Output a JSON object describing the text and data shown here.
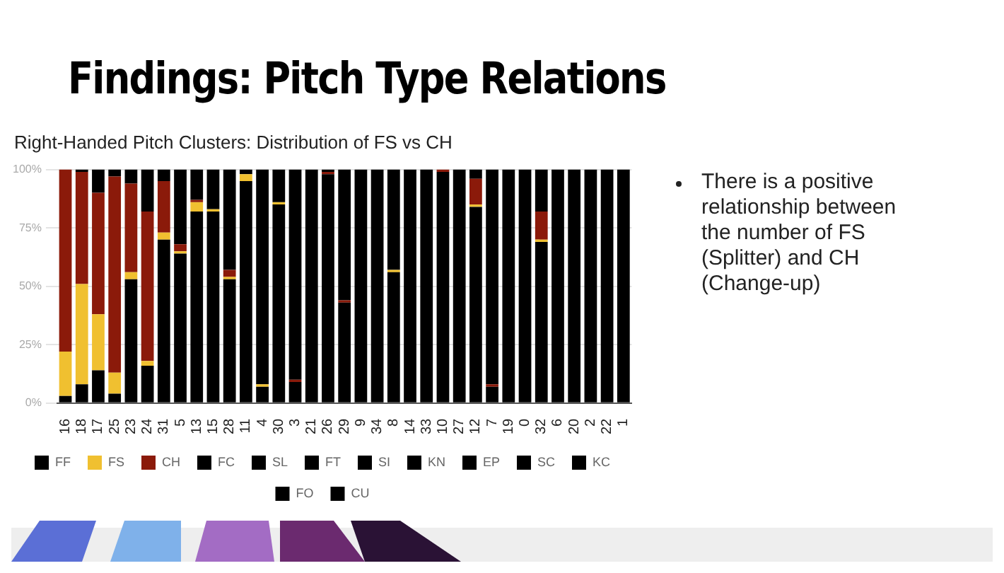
{
  "chart_data": {
    "type": "bar",
    "title": "Findings: Pitch Type Relations",
    "subtitle": "Right-Handed Pitch Clusters: Distribution of FS vs CH",
    "annotations": [
      "There is a positive relationship between the number of FS (Splitter) and CH (Change-up)"
    ],
    "categories": [
      "16",
      "18",
      "17",
      "25",
      "23",
      "24",
      "31",
      "5",
      "13",
      "15",
      "28",
      "11",
      "4",
      "30",
      "3",
      "21",
      "26",
      "29",
      "9",
      "34",
      "8",
      "14",
      "33",
      "10",
      "27",
      "12",
      "7",
      "19",
      "0",
      "32",
      "6",
      "20",
      "2",
      "22",
      "1"
    ],
    "stacked": true,
    "series": [
      {
        "name": "FF",
        "color": "#000000",
        "values": [
          3,
          8,
          14,
          4,
          53,
          16,
          70,
          64,
          82,
          82,
          53,
          95,
          7,
          85,
          9,
          100,
          98,
          43,
          100,
          100,
          56,
          100,
          100,
          99,
          100,
          84,
          7,
          100,
          100,
          69,
          100,
          100,
          100,
          100,
          100
        ]
      },
      {
        "name": "FS",
        "color": "#f0c030",
        "values": [
          19,
          43,
          24,
          9,
          3,
          2,
          3,
          1,
          4,
          1,
          1,
          3,
          1,
          1,
          0,
          0,
          0,
          0,
          0,
          0,
          1,
          0,
          0,
          0,
          0,
          1,
          0,
          0,
          0,
          1,
          0,
          0,
          0,
          0,
          0
        ]
      },
      {
        "name": "CH",
        "color": "#8b1a0a",
        "values": [
          78,
          48,
          52,
          84,
          38,
          64,
          22,
          3,
          1,
          0,
          3,
          0,
          0,
          0,
          1,
          0,
          1,
          1,
          0,
          0,
          0,
          0,
          0,
          1,
          0,
          11,
          1,
          0,
          0,
          12,
          0,
          0,
          0,
          0,
          0
        ]
      },
      {
        "name": "FC",
        "color": "#000000",
        "values": [
          0,
          1,
          10,
          3,
          6,
          18,
          5,
          32,
          13,
          17,
          43,
          2,
          92,
          14,
          90,
          0,
          1,
          56,
          0,
          0,
          43,
          0,
          0,
          0,
          0,
          4,
          92,
          0,
          0,
          18,
          0,
          0,
          0,
          0,
          0
        ]
      },
      {
        "name": "SL",
        "color": "#000000",
        "values": [
          0,
          0,
          0,
          0,
          0,
          0,
          0,
          0,
          0,
          0,
          0,
          0,
          0,
          0,
          0,
          0,
          0,
          0,
          0,
          0,
          0,
          0,
          0,
          0,
          0,
          0,
          0,
          0,
          0,
          0,
          0,
          0,
          0,
          0,
          0
        ]
      },
      {
        "name": "FT",
        "color": "#000000",
        "values": [
          0,
          0,
          0,
          0,
          0,
          0,
          0,
          0,
          0,
          0,
          0,
          0,
          0,
          0,
          0,
          0,
          0,
          0,
          0,
          0,
          0,
          0,
          0,
          0,
          0,
          0,
          0,
          0,
          0,
          0,
          0,
          0,
          0,
          0,
          0
        ]
      },
      {
        "name": "SI",
        "color": "#000000",
        "values": [
          0,
          0,
          0,
          0,
          0,
          0,
          0,
          0,
          0,
          0,
          0,
          0,
          0,
          0,
          0,
          0,
          0,
          0,
          0,
          0,
          0,
          0,
          0,
          0,
          0,
          0,
          0,
          0,
          0,
          0,
          0,
          0,
          0,
          0,
          0
        ]
      },
      {
        "name": "KN",
        "color": "#000000",
        "values": [
          0,
          0,
          0,
          0,
          0,
          0,
          0,
          0,
          0,
          0,
          0,
          0,
          0,
          0,
          0,
          0,
          0,
          0,
          0,
          0,
          0,
          0,
          0,
          0,
          0,
          0,
          0,
          0,
          0,
          0,
          0,
          0,
          0,
          0,
          0
        ]
      },
      {
        "name": "EP",
        "color": "#000000",
        "values": [
          0,
          0,
          0,
          0,
          0,
          0,
          0,
          0,
          0,
          0,
          0,
          0,
          0,
          0,
          0,
          0,
          0,
          0,
          0,
          0,
          0,
          0,
          0,
          0,
          0,
          0,
          0,
          0,
          0,
          0,
          0,
          0,
          0,
          0,
          0
        ]
      },
      {
        "name": "SC",
        "color": "#000000",
        "values": [
          0,
          0,
          0,
          0,
          0,
          0,
          0,
          0,
          0,
          0,
          0,
          0,
          0,
          0,
          0,
          0,
          0,
          0,
          0,
          0,
          0,
          0,
          0,
          0,
          0,
          0,
          0,
          0,
          0,
          0,
          0,
          0,
          0,
          0,
          0
        ]
      },
      {
        "name": "KC",
        "color": "#000000",
        "values": [
          0,
          0,
          0,
          0,
          0,
          0,
          0,
          0,
          0,
          0,
          0,
          0,
          0,
          0,
          0,
          0,
          0,
          0,
          0,
          0,
          0,
          0,
          0,
          0,
          0,
          0,
          0,
          0,
          0,
          0,
          0,
          0,
          0,
          0,
          0
        ]
      },
      {
        "name": "FO",
        "color": "#000000",
        "values": [
          0,
          0,
          0,
          0,
          0,
          0,
          0,
          0,
          0,
          0,
          0,
          0,
          0,
          0,
          0,
          0,
          0,
          0,
          0,
          0,
          0,
          0,
          0,
          0,
          0,
          0,
          0,
          0,
          0,
          0,
          0,
          0,
          0,
          0,
          0
        ]
      },
      {
        "name": "CU",
        "color": "#000000",
        "values": [
          0,
          0,
          0,
          0,
          0,
          0,
          0,
          0,
          0,
          0,
          0,
          0,
          0,
          0,
          0,
          0,
          0,
          0,
          0,
          0,
          0,
          0,
          0,
          0,
          0,
          0,
          0,
          0,
          0,
          0,
          0,
          0,
          0,
          0,
          0
        ]
      }
    ],
    "ylim": [
      0,
      100
    ],
    "yticks": [
      {
        "value": 0,
        "label": "0%"
      },
      {
        "value": 25,
        "label": "25%"
      },
      {
        "value": 50,
        "label": "50%"
      },
      {
        "value": 75,
        "label": "75%"
      },
      {
        "value": 100,
        "label": "100%"
      }
    ],
    "grid": "y",
    "legend": "bottom"
  }
}
